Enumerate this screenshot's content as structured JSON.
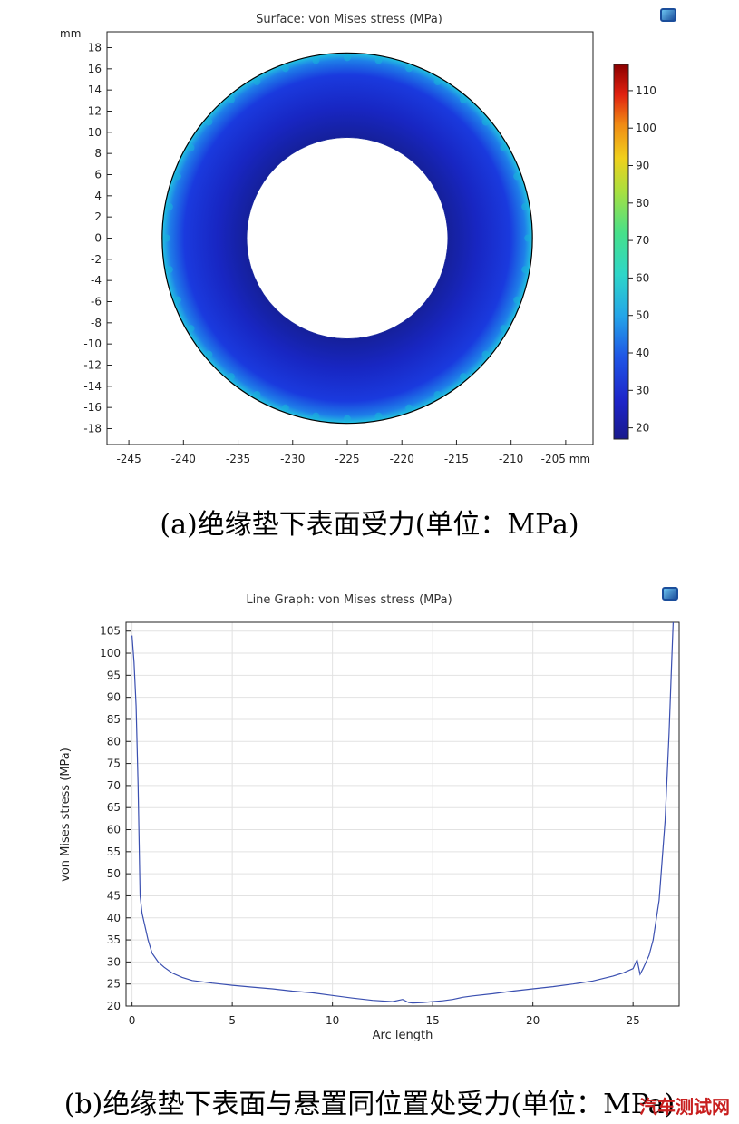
{
  "chart_data": [
    {
      "type": "heatmap",
      "title": "Surface: von Mises stress (MPa)",
      "unit_label": "mm",
      "x_ticks": [
        -245,
        -240,
        -235,
        -230,
        -225,
        -220,
        -215,
        -210,
        -205
      ],
      "x_unit": "mm",
      "y_ticks": [
        18,
        16,
        14,
        12,
        10,
        8,
        6,
        4,
        2,
        0,
        -2,
        -4,
        -6,
        -8,
        -10,
        -12,
        -14,
        -16,
        -18
      ],
      "xlim": [
        -247,
        -202.5
      ],
      "ylim": [
        -19.5,
        19.5
      ],
      "annulus": {
        "center": [
          -225,
          0
        ],
        "outer_radius": 17.5,
        "inner_radius": 9.5
      },
      "colorbar": {
        "range": [
          17,
          117
        ],
        "ticks": [
          110,
          100,
          90,
          80,
          70,
          60,
          50,
          40,
          30,
          20
        ]
      },
      "field_description_values": {
        "bulk_stress": 25,
        "edge_stress": 45,
        "max_stress": 117
      }
    },
    {
      "type": "line",
      "title": "Line Graph: von Mises stress (MPa)",
      "xlabel": "Arc length",
      "ylabel": "von Mises stress (MPa)",
      "xlim": [
        -0.3,
        27.3
      ],
      "ylim": [
        20,
        107
      ],
      "x_ticks": [
        0,
        5,
        10,
        15,
        20,
        25
      ],
      "y_ticks": [
        105,
        100,
        95,
        90,
        85,
        80,
        75,
        70,
        65,
        60,
        55,
        50,
        45,
        40,
        35,
        30,
        25,
        20
      ],
      "grid": true,
      "x": [
        0,
        0.1,
        0.2,
        0.3,
        0.4,
        0.5,
        0.6,
        0.8,
        1.0,
        1.3,
        1.6,
        2.0,
        2.5,
        3.0,
        4.0,
        5.0,
        6.0,
        7.0,
        8.0,
        9.0,
        10.0,
        11.0,
        12.0,
        13.0,
        13.5,
        13.8,
        14.0,
        14.5,
        15.0,
        15.5,
        16.0,
        16.5,
        17.0,
        18.0,
        19.0,
        20.0,
        21.0,
        22.0,
        23.0,
        24.0,
        24.5,
        25.0,
        25.2,
        25.35,
        25.5,
        25.8,
        26.0,
        26.3,
        26.6,
        26.8,
        26.9,
        27.0
      ],
      "y": [
        104,
        98,
        88,
        70,
        45,
        41,
        39,
        35,
        32,
        30,
        28.8,
        27.5,
        26.5,
        25.8,
        25.2,
        24.7,
        24.3,
        23.9,
        23.4,
        23.0,
        22.4,
        21.8,
        21.3,
        21.0,
        21.5,
        20.8,
        20.7,
        20.8,
        21.0,
        21.2,
        21.5,
        22.0,
        22.3,
        22.8,
        23.4,
        23.9,
        24.4,
        25.0,
        25.7,
        26.8,
        27.5,
        28.5,
        30.5,
        27.2,
        28.5,
        31.5,
        35,
        44,
        62,
        82,
        95,
        107
      ]
    }
  ],
  "captions": {
    "a": "(a)绝缘垫下表面受力(单位：MPa)",
    "b": "(b)绝缘垫下表面与悬置同位置处受力(单位：MPa)"
  },
  "watermark": "汽车测试网",
  "colors": {
    "line": "#3a4fb0",
    "ring_low": "#1a2ac8",
    "ring_edge": "#18b4d8",
    "ring_outline": "#000000",
    "colorbar_top": "#8b0000",
    "colorbar_bottom": "#1a1a8c"
  }
}
